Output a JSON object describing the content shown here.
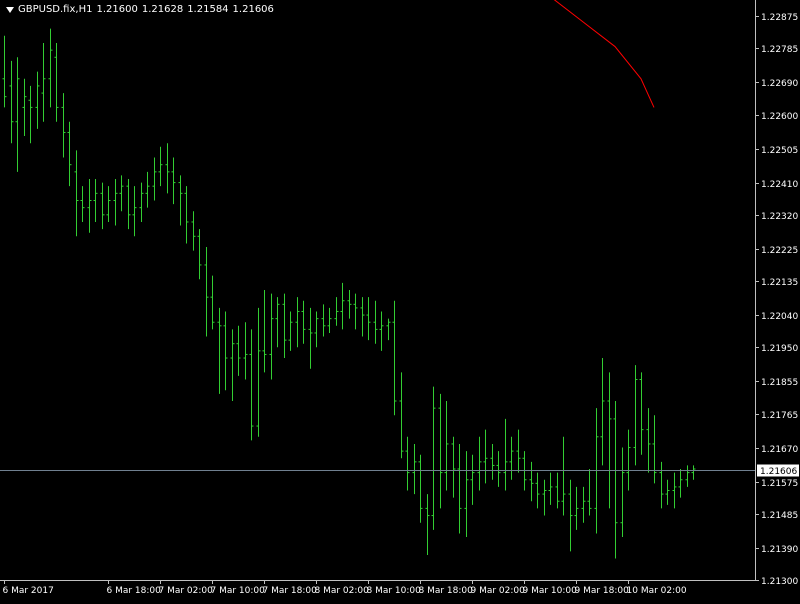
{
  "chart_data": {
    "type": "ohlc",
    "symbol": "GBPUSD.fix,H1",
    "last_ohlc": {
      "open": "1.21600",
      "high": "1.21628",
      "low": "1.21584",
      "close": "1.21606"
    },
    "current_price": 1.21606,
    "current_price_label": "1.21606",
    "y_axis": {
      "range": [
        1.213,
        1.2292
      ],
      "ticks": [
        {
          "value": 1.22875,
          "label": "1.22875"
        },
        {
          "value": 1.22785,
          "label": "1.22785"
        },
        {
          "value": 1.2269,
          "label": "1.22690"
        },
        {
          "value": 1.226,
          "label": "1.22600"
        },
        {
          "value": 1.22505,
          "label": "1.22505"
        },
        {
          "value": 1.2241,
          "label": "1.22410"
        },
        {
          "value": 1.2232,
          "label": "1.22320"
        },
        {
          "value": 1.22225,
          "label": "1.22225"
        },
        {
          "value": 1.22135,
          "label": "1.22135"
        },
        {
          "value": 1.2204,
          "label": "1.22040"
        },
        {
          "value": 1.2195,
          "label": "1.21950"
        },
        {
          "value": 1.21855,
          "label": "1.21855"
        },
        {
          "value": 1.21765,
          "label": "1.21765"
        },
        {
          "value": 1.2167,
          "label": "1.21670"
        },
        {
          "value": 1.21575,
          "label": "1.21575"
        },
        {
          "value": 1.21485,
          "label": "1.21485"
        },
        {
          "value": 1.2139,
          "label": "1.21390"
        },
        {
          "value": 1.213,
          "label": "1.21300"
        }
      ]
    },
    "x_axis": {
      "ticks": [
        {
          "bar": 0,
          "label": "6 Mar 2017"
        },
        {
          "bar": 16,
          "label": "6 Mar 18:00"
        },
        {
          "bar": 24,
          "label": "7 Mar 02:00"
        },
        {
          "bar": 32,
          "label": "7 Mar 10:00"
        },
        {
          "bar": 40,
          "label": "7 Mar 18:00"
        },
        {
          "bar": 48,
          "label": "8 Mar 02:00"
        },
        {
          "bar": 56,
          "label": "8 Mar 10:00"
        },
        {
          "bar": 64,
          "label": "8 Mar 18:00"
        },
        {
          "bar": 72,
          "label": "9 Mar 02:00"
        },
        {
          "bar": 80,
          "label": "9 Mar 10:00"
        },
        {
          "bar": 88,
          "label": "9 Mar 18:00"
        },
        {
          "bar": 96,
          "label": "10 Mar 02:00"
        }
      ]
    },
    "bars": [
      {
        "o": 1.227,
        "h": 1.2282,
        "l": 1.2262,
        "c": 1.2265
      },
      {
        "o": 1.2268,
        "h": 1.2275,
        "l": 1.2252,
        "c": 1.2258
      },
      {
        "o": 1.2258,
        "h": 1.2276,
        "l": 1.2244,
        "c": 1.227
      },
      {
        "o": 1.2262,
        "h": 1.227,
        "l": 1.2254,
        "c": 1.2265
      },
      {
        "o": 1.2264,
        "h": 1.2268,
        "l": 1.2252,
        "c": 1.2262
      },
      {
        "o": 1.2262,
        "h": 1.2272,
        "l": 1.2256,
        "c": 1.2268
      },
      {
        "o": 1.2266,
        "h": 1.228,
        "l": 1.2258,
        "c": 1.227
      },
      {
        "o": 1.227,
        "h": 1.2284,
        "l": 1.2262,
        "c": 1.2278
      },
      {
        "o": 1.2276,
        "h": 1.228,
        "l": 1.2258,
        "c": 1.2262
      },
      {
        "o": 1.2262,
        "h": 1.2266,
        "l": 1.2248,
        "c": 1.2255
      },
      {
        "o": 1.2255,
        "h": 1.2258,
        "l": 1.224,
        "c": 1.2246
      },
      {
        "o": 1.2244,
        "h": 1.225,
        "l": 1.2226,
        "c": 1.2236
      },
      {
        "o": 1.2236,
        "h": 1.224,
        "l": 1.223,
        "c": 1.2234
      },
      {
        "o": 1.2234,
        "h": 1.2242,
        "l": 1.2227,
        "c": 1.2236
      },
      {
        "o": 1.2236,
        "h": 1.2242,
        "l": 1.223,
        "c": 1.2238
      },
      {
        "o": 1.2238,
        "h": 1.2241,
        "l": 1.2228,
        "c": 1.2232
      },
      {
        "o": 1.2232,
        "h": 1.224,
        "l": 1.223,
        "c": 1.2236
      },
      {
        "o": 1.2236,
        "h": 1.2242,
        "l": 1.2229,
        "c": 1.2238
      },
      {
        "o": 1.2238,
        "h": 1.2243,
        "l": 1.2233,
        "c": 1.224
      },
      {
        "o": 1.224,
        "h": 1.2242,
        "l": 1.2228,
        "c": 1.2232
      },
      {
        "o": 1.2232,
        "h": 1.224,
        "l": 1.2226,
        "c": 1.2234
      },
      {
        "o": 1.2234,
        "h": 1.2241,
        "l": 1.223,
        "c": 1.2238
      },
      {
        "o": 1.2238,
        "h": 1.2244,
        "l": 1.2234,
        "c": 1.224
      },
      {
        "o": 1.224,
        "h": 1.2248,
        "l": 1.2236,
        "c": 1.2244
      },
      {
        "o": 1.2244,
        "h": 1.2251,
        "l": 1.224,
        "c": 1.2246
      },
      {
        "o": 1.2246,
        "h": 1.2252,
        "l": 1.2238,
        "c": 1.2244
      },
      {
        "o": 1.2244,
        "h": 1.2248,
        "l": 1.2235,
        "c": 1.2241
      },
      {
        "o": 1.2241,
        "h": 1.2243,
        "l": 1.2229,
        "c": 1.2238
      },
      {
        "o": 1.2238,
        "h": 1.224,
        "l": 1.2224,
        "c": 1.223
      },
      {
        "o": 1.223,
        "h": 1.2233,
        "l": 1.2222,
        "c": 1.2226
      },
      {
        "o": 1.2226,
        "h": 1.2228,
        "l": 1.2214,
        "c": 1.2218
      },
      {
        "o": 1.2218,
        "h": 1.2223,
        "l": 1.2198,
        "c": 1.2209
      },
      {
        "o": 1.2209,
        "h": 1.2215,
        "l": 1.22,
        "c": 1.2202
      },
      {
        "o": 1.2202,
        "h": 1.2206,
        "l": 1.2182,
        "c": 1.2201
      },
      {
        "o": 1.2201,
        "h": 1.2205,
        "l": 1.2183,
        "c": 1.2192
      },
      {
        "o": 1.2192,
        "h": 1.22,
        "l": 1.218,
        "c": 1.2196
      },
      {
        "o": 1.2196,
        "h": 1.2201,
        "l": 1.2187,
        "c": 1.2192
      },
      {
        "o": 1.2192,
        "h": 1.2202,
        "l": 1.2186,
        "c": 1.2193
      },
      {
        "o": 1.2193,
        "h": 1.22,
        "l": 1.2169,
        "c": 1.2173
      },
      {
        "o": 1.2173,
        "h": 1.2206,
        "l": 1.217,
        "c": 1.2194
      },
      {
        "o": 1.2194,
        "h": 1.2211,
        "l": 1.2188,
        "c": 1.2193
      },
      {
        "o": 1.2193,
        "h": 1.221,
        "l": 1.2186,
        "c": 1.2203
      },
      {
        "o": 1.2203,
        "h": 1.2209,
        "l": 1.2195,
        "c": 1.2207
      },
      {
        "o": 1.2207,
        "h": 1.221,
        "l": 1.2192,
        "c": 1.2197
      },
      {
        "o": 1.2197,
        "h": 1.2205,
        "l": 1.2194,
        "c": 1.2202
      },
      {
        "o": 1.2202,
        "h": 1.2209,
        "l": 1.2195,
        "c": 1.2205
      },
      {
        "o": 1.2205,
        "h": 1.2208,
        "l": 1.2196,
        "c": 1.22
      },
      {
        "o": 1.22,
        "h": 1.2206,
        "l": 1.2189,
        "c": 1.2199
      },
      {
        "o": 1.2199,
        "h": 1.2205,
        "l": 1.2195,
        "c": 1.2203
      },
      {
        "o": 1.2203,
        "h": 1.2207,
        "l": 1.2198,
        "c": 1.2201
      },
      {
        "o": 1.2201,
        "h": 1.2206,
        "l": 1.2199,
        "c": 1.2203
      },
      {
        "o": 1.2203,
        "h": 1.2209,
        "l": 1.2201,
        "c": 1.2205
      },
      {
        "o": 1.2205,
        "h": 1.2213,
        "l": 1.22,
        "c": 1.2208
      },
      {
        "o": 1.2208,
        "h": 1.2211,
        "l": 1.2203,
        "c": 1.2207
      },
      {
        "o": 1.2207,
        "h": 1.221,
        "l": 1.22,
        "c": 1.2206
      },
      {
        "o": 1.2206,
        "h": 1.2209,
        "l": 1.2198,
        "c": 1.2204
      },
      {
        "o": 1.2204,
        "h": 1.2209,
        "l": 1.2197,
        "c": 1.2202
      },
      {
        "o": 1.2202,
        "h": 1.2208,
        "l": 1.2196,
        "c": 1.22
      },
      {
        "o": 1.22,
        "h": 1.2205,
        "l": 1.2194,
        "c": 1.2201
      },
      {
        "o": 1.2201,
        "h": 1.2203,
        "l": 1.2197,
        "c": 1.2202
      }
    ],
    "bars_tail": [
      {
        "o": 1.2202,
        "h": 1.2208,
        "l": 1.2176,
        "c": 1.218
      },
      {
        "o": 1.218,
        "h": 1.2188,
        "l": 1.2164,
        "c": 1.2166
      },
      {
        "o": 1.2166,
        "h": 1.217,
        "l": 1.2155,
        "c": 1.216
      },
      {
        "o": 1.216,
        "h": 1.2168,
        "l": 1.2154,
        "c": 1.2163
      },
      {
        "o": 1.2163,
        "h": 1.2165,
        "l": 1.2146,
        "c": 1.215
      },
      {
        "o": 1.215,
        "h": 1.2154,
        "l": 1.2137,
        "c": 1.2148
      },
      {
        "o": 1.2148,
        "h": 1.2184,
        "l": 1.2144,
        "c": 1.2178
      },
      {
        "o": 1.2178,
        "h": 1.2182,
        "l": 1.215,
        "c": 1.216
      },
      {
        "o": 1.216,
        "h": 1.218,
        "l": 1.2155,
        "c": 1.2168
      },
      {
        "o": 1.2168,
        "h": 1.217,
        "l": 1.2153,
        "c": 1.2161
      },
      {
        "o": 1.2161,
        "h": 1.2168,
        "l": 1.2143,
        "c": 1.215
      },
      {
        "o": 1.215,
        "h": 1.2166,
        "l": 1.2142,
        "c": 1.2158
      },
      {
        "o": 1.2158,
        "h": 1.2165,
        "l": 1.2151,
        "c": 1.216
      },
      {
        "o": 1.216,
        "h": 1.217,
        "l": 1.2155,
        "c": 1.2163
      },
      {
        "o": 1.2163,
        "h": 1.2172,
        "l": 1.2157,
        "c": 1.2164
      },
      {
        "o": 1.2164,
        "h": 1.2168,
        "l": 1.2158,
        "c": 1.2162
      },
      {
        "o": 1.2162,
        "h": 1.2166,
        "l": 1.2156,
        "c": 1.216
      },
      {
        "o": 1.216,
        "h": 1.2175,
        "l": 1.2155,
        "c": 1.2163
      },
      {
        "o": 1.2163,
        "h": 1.217,
        "l": 1.2158,
        "c": 1.2166
      },
      {
        "o": 1.2166,
        "h": 1.2172,
        "l": 1.216,
        "c": 1.2164
      },
      {
        "o": 1.2164,
        "h": 1.2166,
        "l": 1.2155,
        "c": 1.2158
      },
      {
        "o": 1.2158,
        "h": 1.2163,
        "l": 1.2152,
        "c": 1.2157
      },
      {
        "o": 1.2157,
        "h": 1.216,
        "l": 1.215,
        "c": 1.2154
      },
      {
        "o": 1.2154,
        "h": 1.2158,
        "l": 1.2148,
        "c": 1.2155
      },
      {
        "o": 1.2155,
        "h": 1.216,
        "l": 1.2151,
        "c": 1.2156
      },
      {
        "o": 1.2156,
        "h": 1.216,
        "l": 1.215,
        "c": 1.2152
      },
      {
        "o": 1.2152,
        "h": 1.217,
        "l": 1.2148,
        "c": 1.2154
      },
      {
        "o": 1.2154,
        "h": 1.2158,
        "l": 1.2138,
        "c": 1.2148
      },
      {
        "o": 1.2148,
        "h": 1.2156,
        "l": 1.2144,
        "c": 1.215
      },
      {
        "o": 1.215,
        "h": 1.2156,
        "l": 1.2146,
        "c": 1.2152
      },
      {
        "o": 1.2152,
        "h": 1.2161,
        "l": 1.2148,
        "c": 1.215
      },
      {
        "o": 1.215,
        "h": 1.2178,
        "l": 1.2143,
        "c": 1.217
      },
      {
        "o": 1.217,
        "h": 1.2192,
        "l": 1.2162,
        "c": 1.218
      },
      {
        "o": 1.218,
        "h": 1.2188,
        "l": 1.215,
        "c": 1.2175
      },
      {
        "o": 1.2175,
        "h": 1.218,
        "l": 1.2136,
        "c": 1.2146
      },
      {
        "o": 1.2146,
        "h": 1.2167,
        "l": 1.2142,
        "c": 1.216
      },
      {
        "o": 1.216,
        "h": 1.2172,
        "l": 1.2155,
        "c": 1.2167
      },
      {
        "o": 1.2167,
        "h": 1.219,
        "l": 1.2162,
        "c": 1.2186
      },
      {
        "o": 1.2186,
        "h": 1.2188,
        "l": 1.2165,
        "c": 1.2172
      },
      {
        "o": 1.2172,
        "h": 1.2178,
        "l": 1.216,
        "c": 1.2168
      },
      {
        "o": 1.2168,
        "h": 1.2176,
        "l": 1.2157,
        "c": 1.216
      },
      {
        "o": 1.216,
        "h": 1.2163,
        "l": 1.215,
        "c": 1.2154
      },
      {
        "o": 1.2154,
        "h": 1.2158,
        "l": 1.2151,
        "c": 1.2155
      },
      {
        "o": 1.2155,
        "h": 1.216,
        "l": 1.215,
        "c": 1.2156
      },
      {
        "o": 1.2156,
        "h": 1.2161,
        "l": 1.2153,
        "c": 1.2158
      },
      {
        "o": 1.2158,
        "h": 1.2162,
        "l": 1.2156,
        "c": 1.216
      },
      {
        "o": 1.216,
        "h": 1.2162,
        "l": 1.2158,
        "c": 1.2161
      }
    ],
    "indicator": {
      "color": "#ff0000",
      "x_bars": [
        84,
        89,
        94,
        98,
        100
      ],
      "values": [
        1.2293,
        1.2286,
        1.2279,
        1.227,
        1.2262
      ]
    }
  },
  "colors": {
    "background": "#000000",
    "bar": "#32cd32",
    "axis": "#c0c0c0",
    "text": "#ffffff",
    "price_line": "#708090",
    "price_label_bg": "#ffffff",
    "price_label_text": "#000000"
  }
}
